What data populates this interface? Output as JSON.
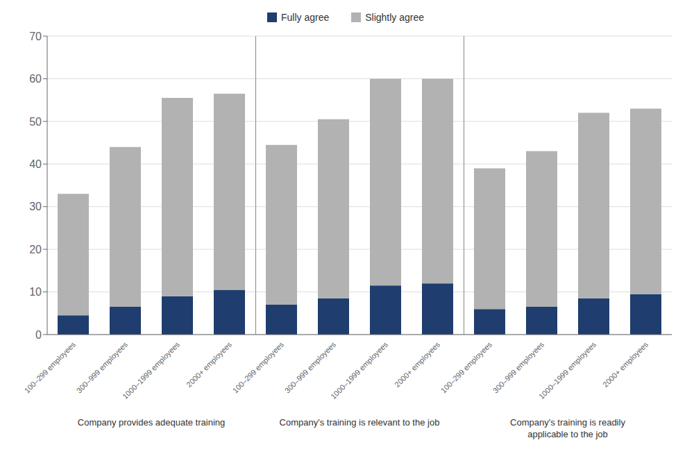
{
  "chart_data": {
    "type": "bar",
    "stacked": true,
    "grid": true,
    "legend": "top",
    "categories": [
      "100–299 employees",
      "300–999 employees",
      "1000–1999 employees",
      "2000+ employees",
      "100–299 employees",
      "300–999 employees",
      "1000–1999 employees",
      "2000+ employees",
      "100–299 employees",
      "300–999 employees",
      "1000–1999 employees",
      "2000+ employees"
    ],
    "group_labels": [
      "Company provides adequate training",
      "Company's training is relevant to the job",
      "Company's training is readily\napplicable to the job"
    ],
    "series": [
      {
        "name": "Fully agree",
        "color": "#1f3d6e",
        "values": [
          4.5,
          6.5,
          9.0,
          10.5,
          7.0,
          8.5,
          11.5,
          12.0,
          6.0,
          6.5,
          8.5,
          9.5
        ]
      },
      {
        "name": "Slightly agree",
        "color": "#b2b2b2",
        "values": [
          28.5,
          37.5,
          46.5,
          46.0,
          37.5,
          42.0,
          48.5,
          48.0,
          33.0,
          36.5,
          43.5,
          43.5
        ]
      }
    ],
    "ylim": [
      0,
      70
    ],
    "yticks": [
      0,
      10,
      20,
      30,
      40,
      50,
      60,
      70
    ]
  }
}
